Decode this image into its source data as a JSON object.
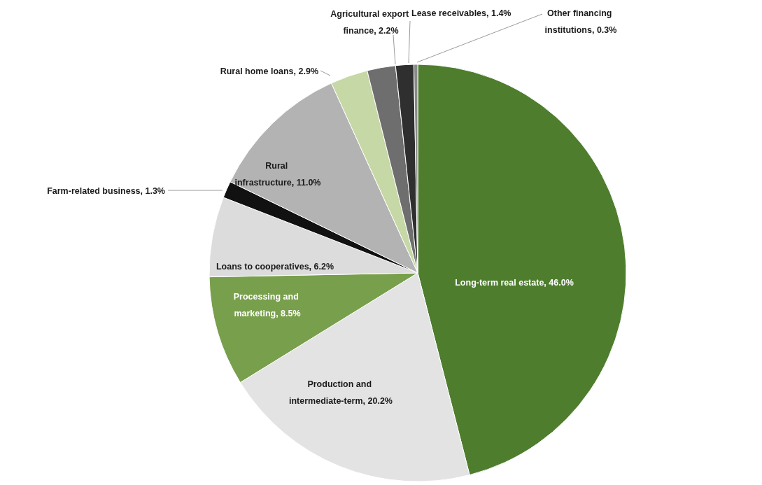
{
  "chart_data": {
    "type": "pie",
    "categories": [
      "Long-term real estate",
      "Production and intermediate-term",
      "Processing and marketing",
      "Loans to cooperatives",
      "Farm-related business",
      "Rural infrastructure",
      "Rural home loans",
      "Agricultural export finance",
      "Lease receivables",
      "Other financing institutions"
    ],
    "values": [
      46.0,
      20.2,
      8.5,
      6.2,
      1.3,
      11.0,
      2.9,
      2.2,
      1.4,
      0.3
    ],
    "value_labels": [
      "46.0%",
      "20.2%",
      "8.5%",
      "6.2%",
      "1.3%",
      "11.0%",
      "2.9%",
      "2.2%",
      "1.4%",
      "0.3%"
    ],
    "colors": [
      "#4e7d2e",
      "#e3e3e3",
      "#789f4c",
      "#dcdcdc",
      "#111111",
      "#b3b3b3",
      "#c6d8a6",
      "#6e6e6e",
      "#2f2f2f",
      "#8a8a8a"
    ]
  }
}
